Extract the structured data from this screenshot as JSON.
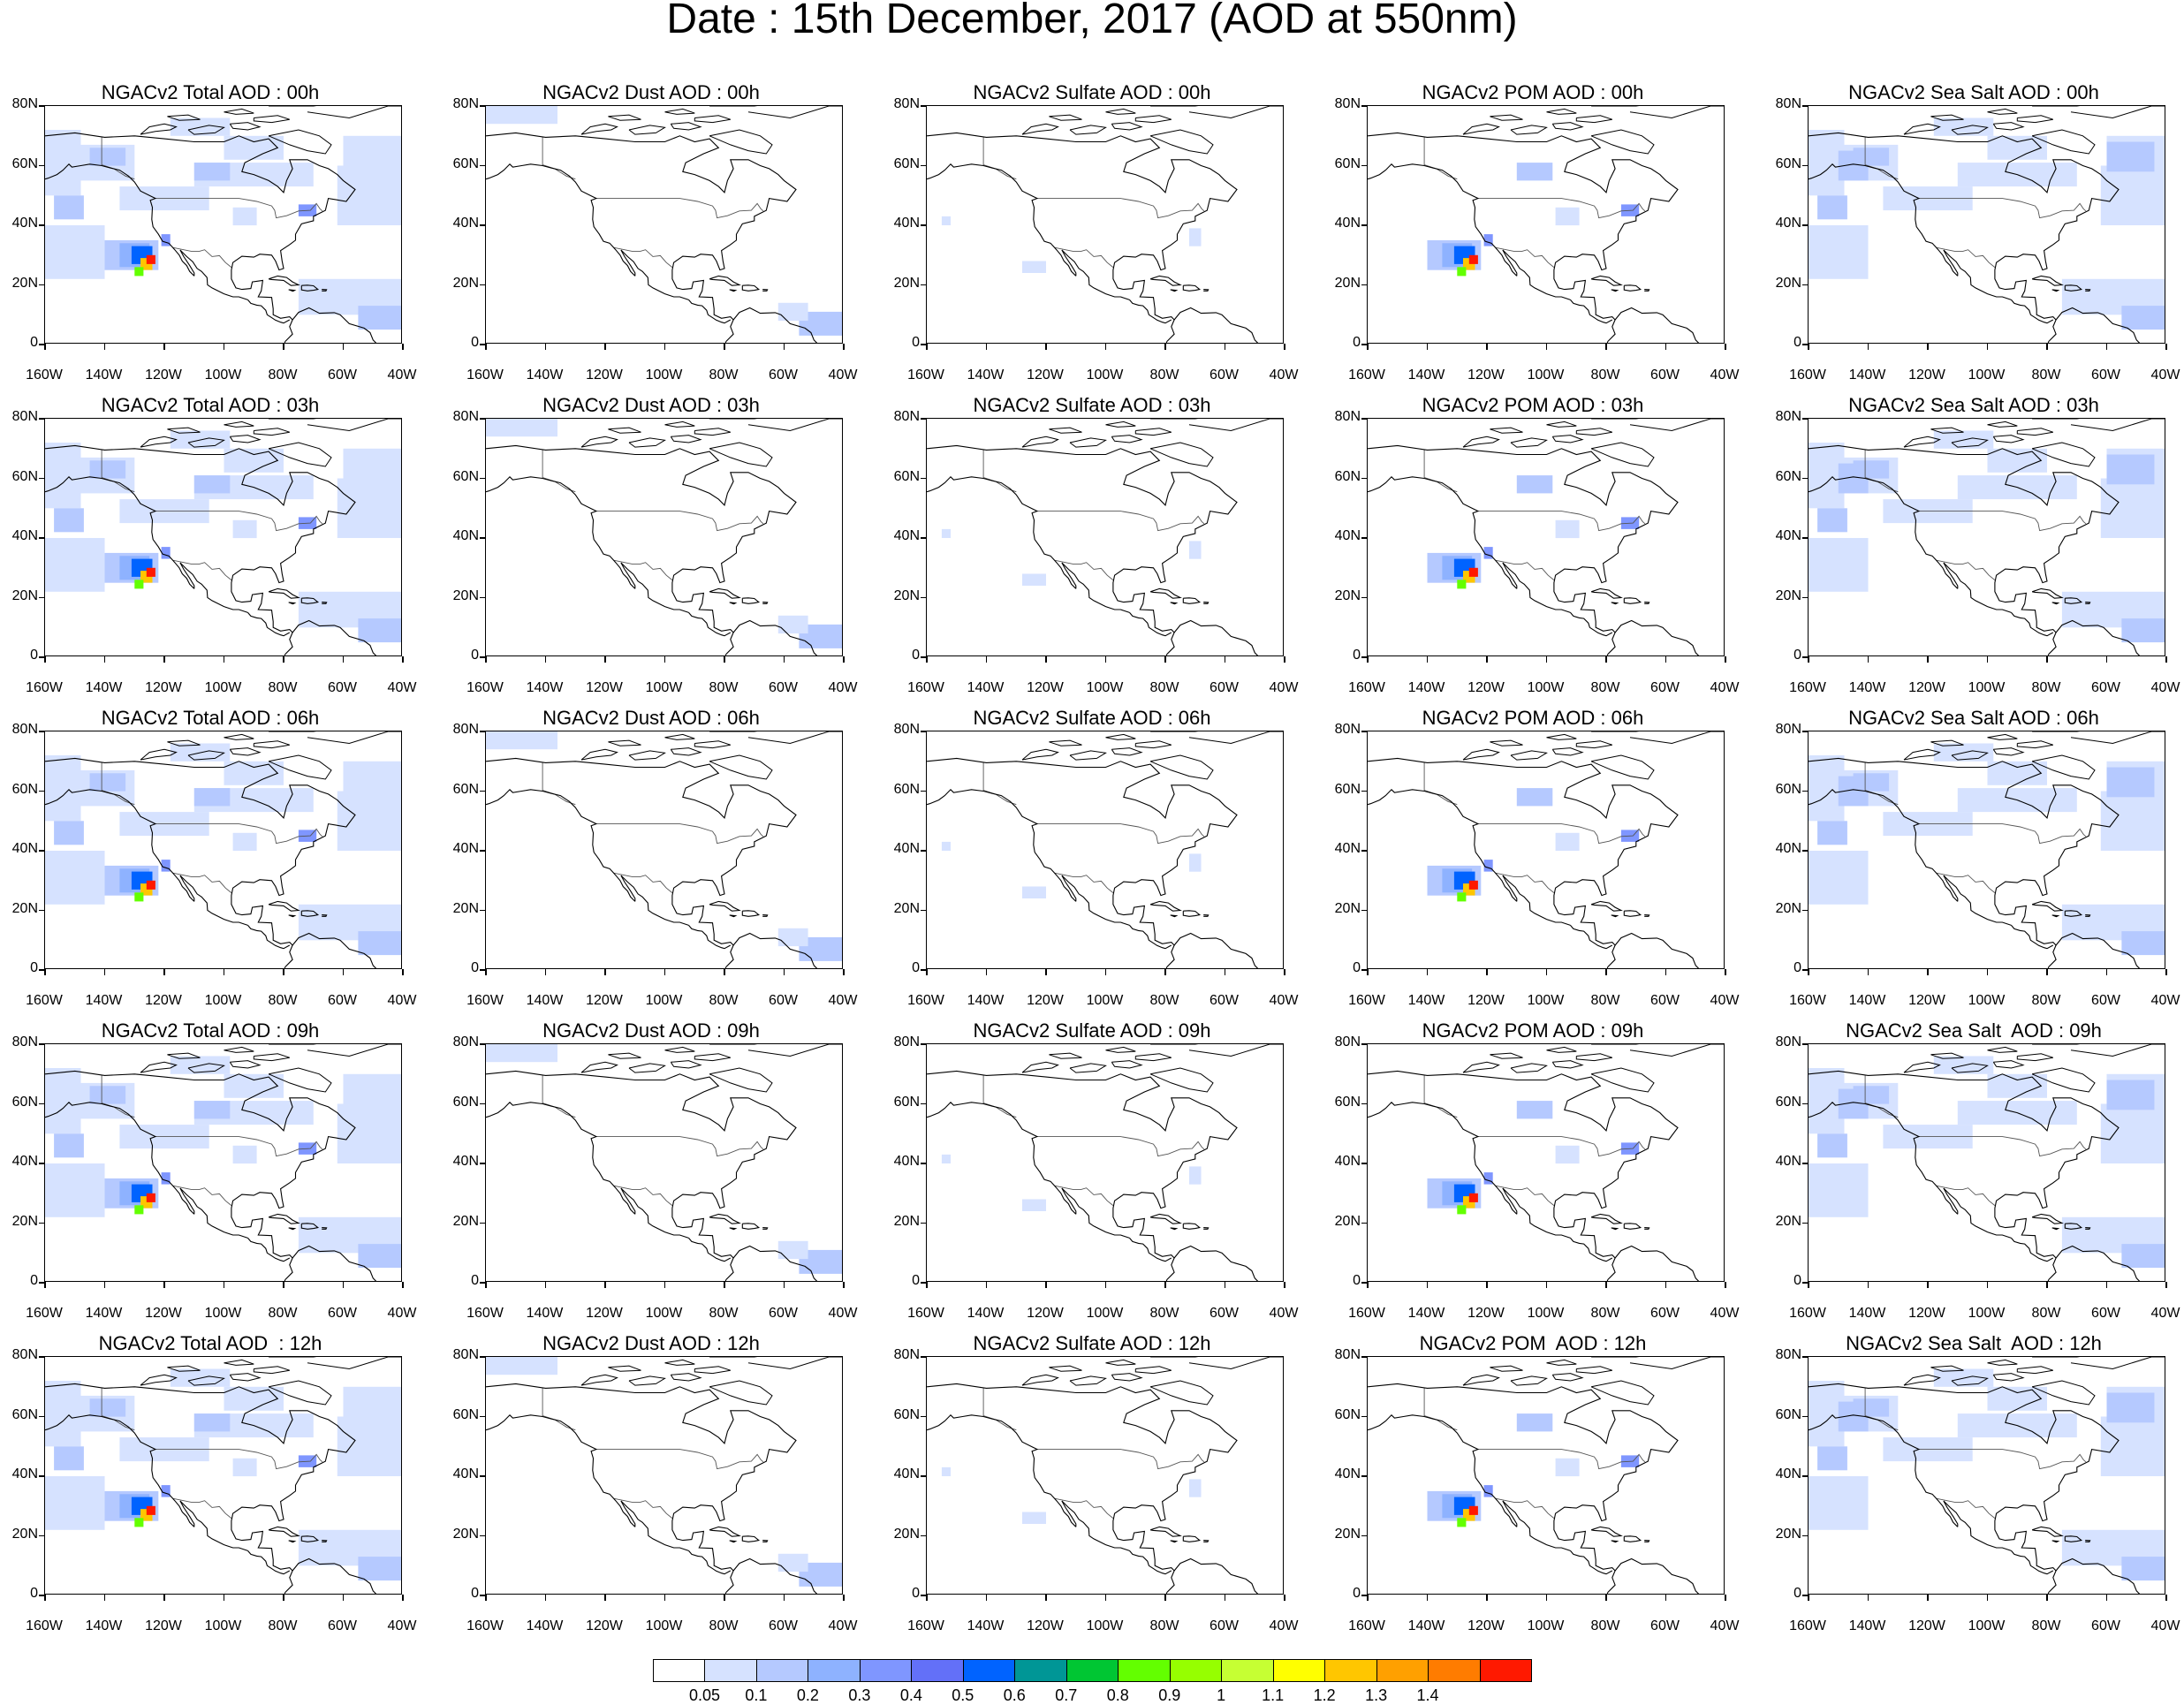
{
  "title": "Date : 15th December, 2017 (AOD at 550nm)",
  "panel_titles": [
    [
      "NGACv2 Total AOD : 00h",
      "NGACv2 Dust AOD : 00h",
      "NGACv2 Sulfate AOD : 00h",
      "NGACv2 POM AOD : 00h",
      "NGACv2 Sea Salt AOD : 00h"
    ],
    [
      "NGACv2 Total AOD : 03h",
      "NGACv2 Dust AOD : 03h",
      "NGACv2 Sulfate AOD : 03h",
      "NGACv2 POM AOD : 03h",
      "NGACv2 Sea Salt AOD : 03h"
    ],
    [
      "NGACv2 Total AOD : 06h",
      "NGACv2 Dust AOD : 06h",
      "NGACv2 Sulfate AOD : 06h",
      "NGACv2 POM AOD : 06h",
      "NGACv2 Sea Salt AOD : 06h"
    ],
    [
      "NGACv2 Total AOD : 09h",
      "NGACv2 Dust AOD : 09h",
      "NGACv2 Sulfate AOD : 09h",
      "NGACv2 POM AOD : 09h",
      "NGACv2 Sea Salt  AOD : 09h"
    ],
    [
      "NGACv2 Total AOD  : 12h",
      "NGACv2 Dust AOD : 12h",
      "NGACv2 Sulfate AOD : 12h",
      "NGACv2 POM  AOD : 12h",
      "NGACv2 Sea Salt  AOD : 12h"
    ]
  ],
  "lat_labels": [
    "80N",
    "60N",
    "40N",
    "20N",
    "0"
  ],
  "lon_labels": [
    "160W",
    "140W",
    "120W",
    "100W",
    "80W",
    "60W",
    "40W"
  ],
  "colorbar": {
    "colors": [
      "#ffffff",
      "#d6e2ff",
      "#b5c9ff",
      "#8eb2ff",
      "#7f96ff",
      "#6370f8",
      "#0063ff",
      "#009696",
      "#00c633",
      "#63ff00",
      "#96ff00",
      "#c6ff33",
      "#ffff00",
      "#ffc600",
      "#ffa000",
      "#ff7c00",
      "#ff1900"
    ],
    "labels": [
      "0.05",
      "0.1",
      "0.2",
      "0.3",
      "0.4",
      "0.5",
      "0.6",
      "0.7",
      "0.8",
      "0.9",
      "1",
      "1.1",
      "1.2",
      "1.3",
      "1.4"
    ]
  }
}
